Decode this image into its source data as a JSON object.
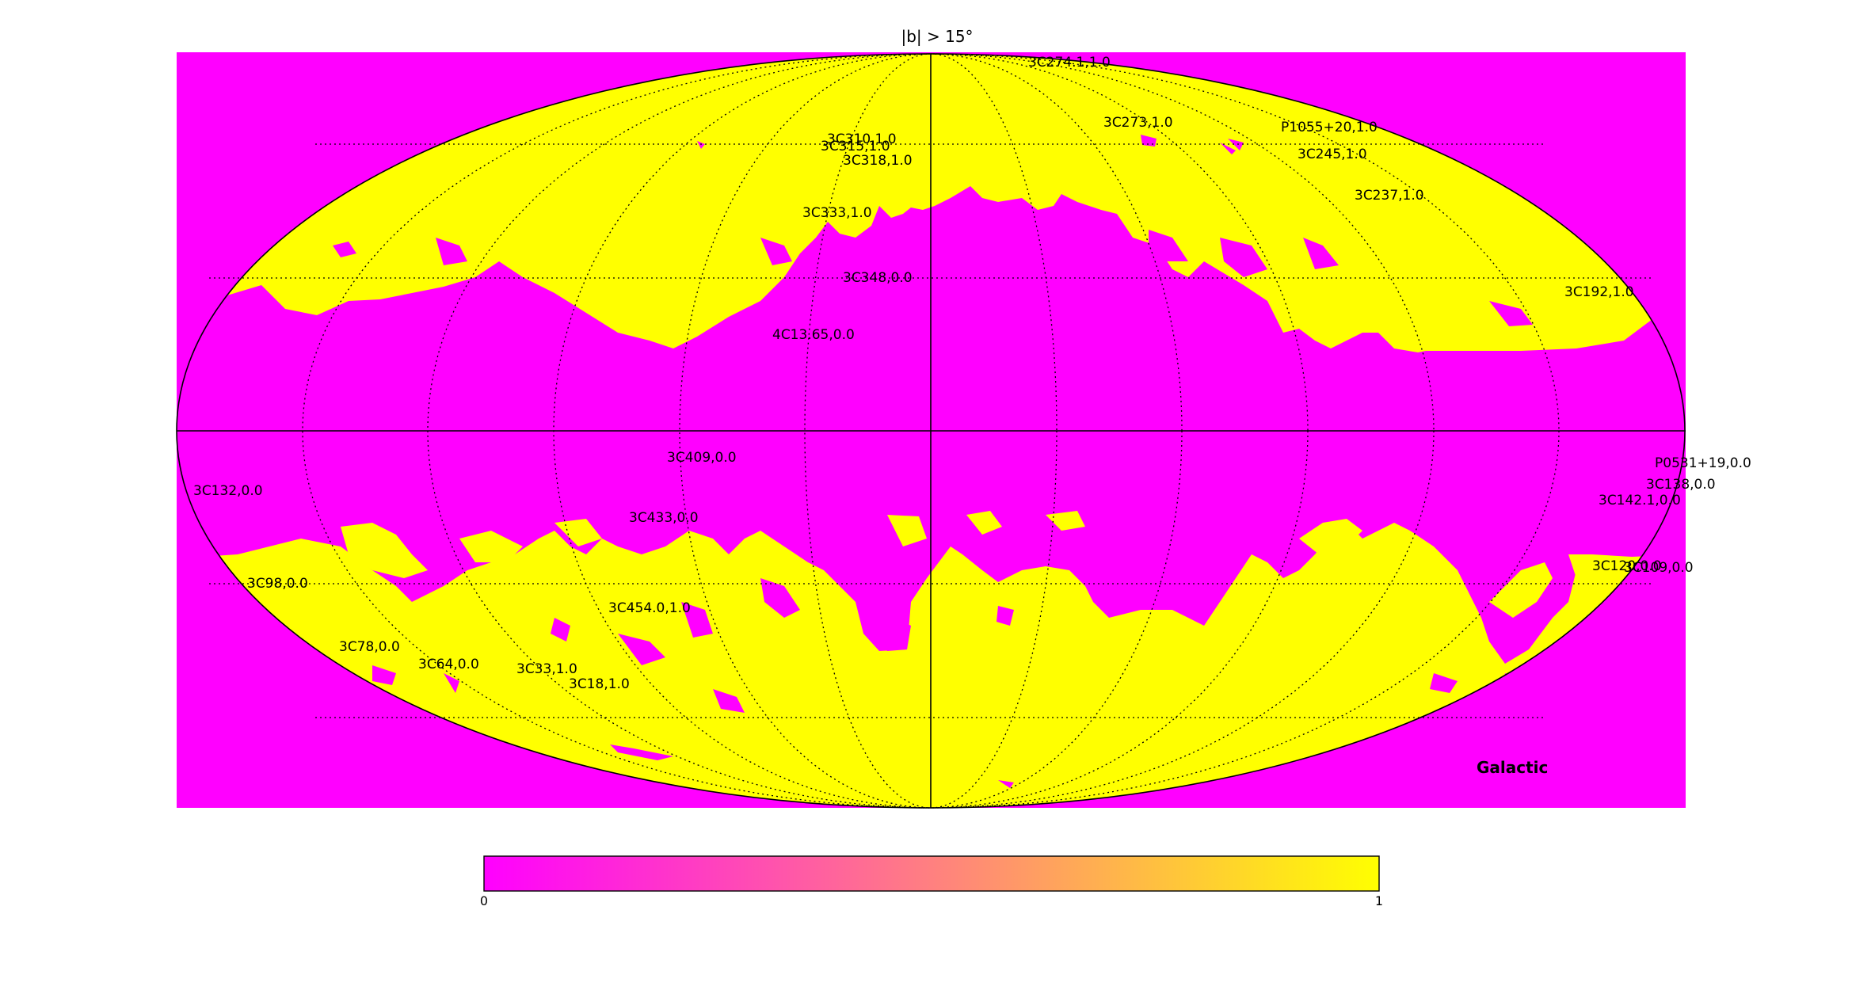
{
  "title": "|b| > 15°",
  "frame_label": "Galactic",
  "colors": {
    "low": "#ff00ff",
    "high": "#ffff00",
    "background": "#ffffff",
    "line": "#000000"
  },
  "colorbar": {
    "min_label": "0",
    "max_label": "1"
  },
  "sources": [
    {
      "label": "3C274.1,1.0"
    },
    {
      "label": "3C273,1.0"
    },
    {
      "label": "P1055+20,1.0"
    },
    {
      "label": "3C245,1.0"
    },
    {
      "label": "3C310,1.0"
    },
    {
      "label": "3C315,1.0"
    },
    {
      "label": "3C318,1.0"
    },
    {
      "label": "3C237,1.0"
    },
    {
      "label": "3C333,1.0"
    },
    {
      "label": "3C348,0.0"
    },
    {
      "label": "3C192,1.0"
    },
    {
      "label": "4C13.65,0.0"
    },
    {
      "label": "3C409,0.0"
    },
    {
      "label": "P0531+19,0.0"
    },
    {
      "label": "3C132,0.0"
    },
    {
      "label": "3C138,0.0"
    },
    {
      "label": "3C142.1,0.0"
    },
    {
      "label": "3C433,0.0"
    },
    {
      "label": "3C120,0.0"
    },
    {
      "label": "3C109,0.0"
    },
    {
      "label": "3C98,0.0"
    },
    {
      "label": "3C454.0,1.0"
    },
    {
      "label": "3C78,0.0"
    },
    {
      "label": "3C64,0.0"
    },
    {
      "label": "3C33,1.0"
    },
    {
      "label": "3C18,1.0"
    }
  ]
}
